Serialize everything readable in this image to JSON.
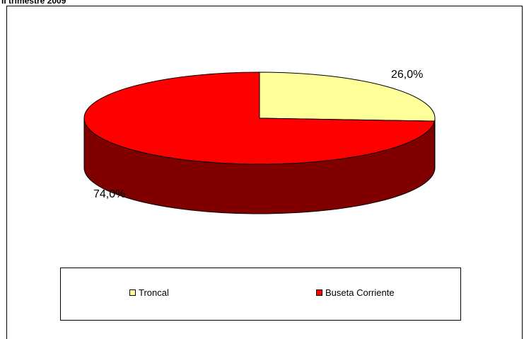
{
  "title": "II trimestre 2009",
  "chart_data": {
    "type": "pie",
    "title": "II trimestre 2009",
    "slices": [
      {
        "label": "Troncal",
        "value": 26.0,
        "display": "26,0%",
        "color": "#FFFF99",
        "side_color": "#808000"
      },
      {
        "label": "Buseta Corriente",
        "value": 74.0,
        "display": "74,0%",
        "color": "#FF0000",
        "side_color": "#800000"
      }
    ],
    "legend_position": "bottom",
    "three_d": true
  }
}
